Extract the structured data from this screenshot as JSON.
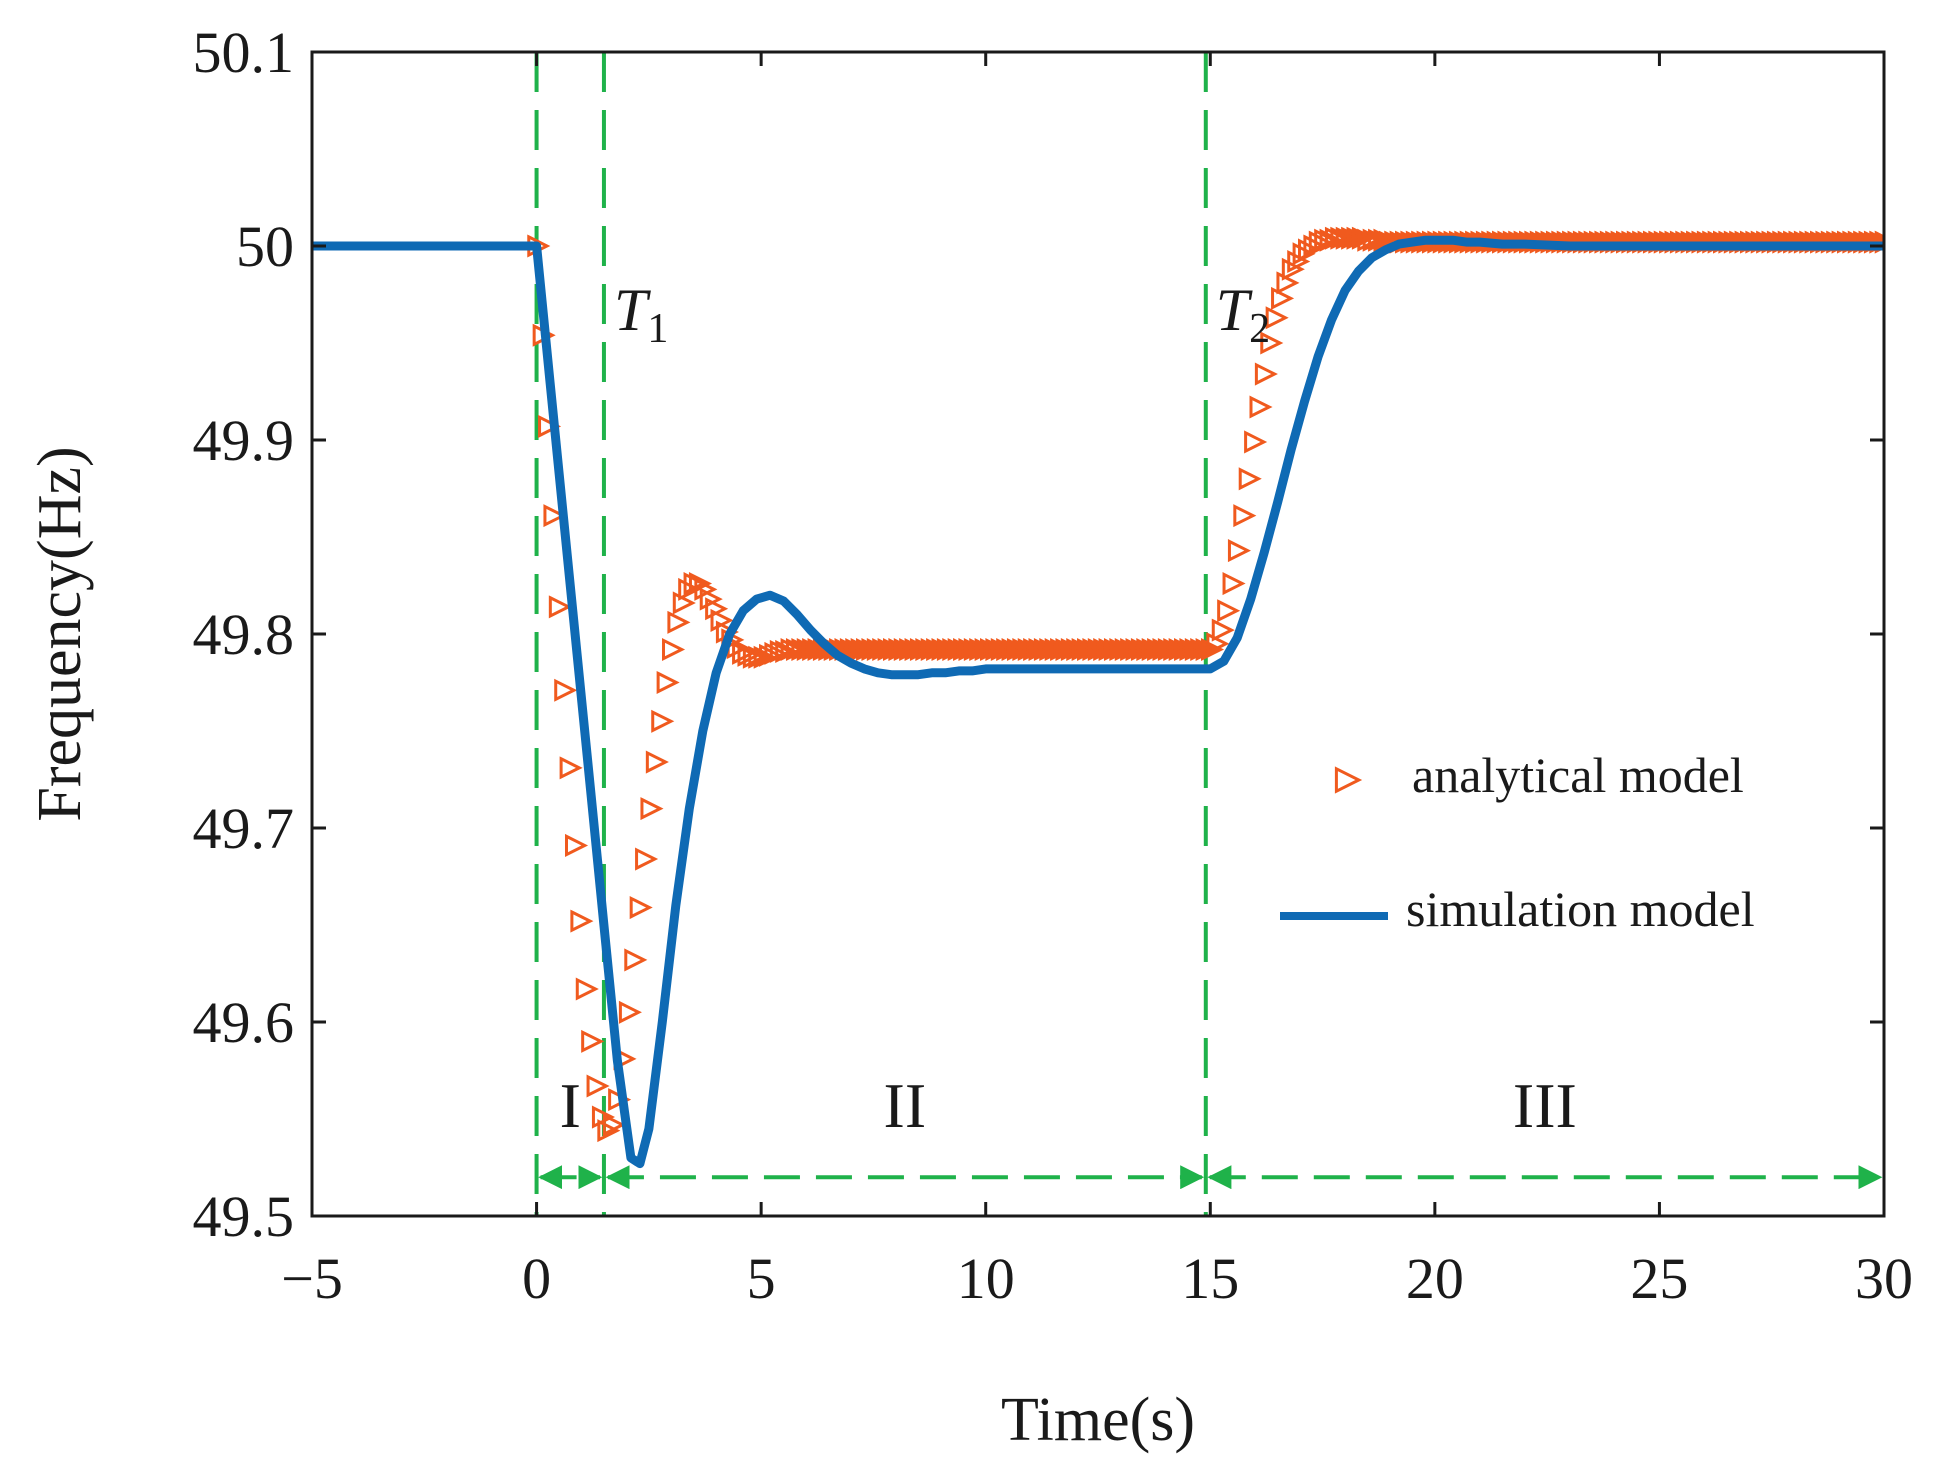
{
  "chart_data": {
    "type": "line",
    "xlabel": "Time(s)",
    "ylabel": "Frequency(Hz)",
    "xlim": [
      -5,
      30
    ],
    "ylim": [
      49.5,
      50.1
    ],
    "xticks": [
      -5,
      0,
      5,
      10,
      15,
      20,
      25,
      30
    ],
    "xtick_labels": [
      "−5",
      "0",
      "5",
      "10",
      "15",
      "20",
      "25",
      "30"
    ],
    "yticks": [
      49.5,
      49.6,
      49.7,
      49.8,
      49.9,
      50,
      50.1
    ],
    "ytick_labels": [
      "49.5",
      "49.6",
      "49.7",
      "49.8",
      "49.9",
      "50",
      "50.1"
    ],
    "grid": false,
    "legend_position": "right-middle",
    "series": [
      {
        "name": "analytical model",
        "style": "triangle-right markers",
        "color": "#f05a1e",
        "x": [
          0,
          0.12,
          0.24,
          0.36,
          0.48,
          0.6,
          0.72,
          0.84,
          0.96,
          1.08,
          1.2,
          1.32,
          1.44,
          1.56,
          1.68,
          1.8,
          1.92,
          2.04,
          2.16,
          2.28,
          2.4,
          2.52,
          2.64,
          2.76,
          2.88,
          3.0,
          3.12,
          3.24,
          3.36,
          3.48,
          3.6,
          3.72,
          3.84,
          3.96,
          4.08,
          4.2,
          4.32,
          4.44,
          4.56,
          4.68,
          4.8,
          4.92,
          5.04,
          5.16,
          5.28,
          5.4,
          5.52,
          5.64,
          5.76,
          5.88,
          6.0,
          6.12,
          6.24,
          6.36,
          6.48,
          6.6,
          6.72,
          6.84,
          6.96,
          7.08,
          7.2,
          7.32,
          7.44,
          7.56,
          7.68,
          7.8,
          7.92,
          8.04,
          8.16,
          8.28,
          8.4,
          8.52,
          8.64,
          8.76,
          8.88,
          9.0,
          9.12,
          9.24,
          9.36,
          9.48,
          9.6,
          9.72,
          9.84,
          9.96,
          10.08,
          10.2,
          10.32,
          10.44,
          10.56,
          10.68,
          10.8,
          10.92,
          11.04,
          11.16,
          11.28,
          11.4,
          11.52,
          11.64,
          11.76,
          11.88,
          12.0,
          12.12,
          12.24,
          12.36,
          12.48,
          12.6,
          12.72,
          12.84,
          12.96,
          13.08,
          13.2,
          13.32,
          13.44,
          13.56,
          13.68,
          13.8,
          13.92,
          14.04,
          14.16,
          14.28,
          14.4,
          14.52,
          14.64,
          14.76,
          14.88,
          15.0,
          15.12,
          15.24,
          15.36,
          15.48,
          15.6,
          15.72,
          15.84,
          15.96,
          16.08,
          16.2,
          16.32,
          16.44,
          16.56,
          16.68,
          16.8,
          16.92,
          17.04,
          17.16,
          17.28,
          17.4,
          17.52,
          17.64,
          17.76,
          17.88,
          18.0,
          18.12,
          18.24,
          18.36,
          18.48,
          18.6,
          18.72,
          18.84,
          18.96,
          19.08,
          19.2,
          19.32,
          19.44,
          19.56,
          19.68,
          19.8,
          19.92,
          20.04,
          20.16,
          20.28,
          20.4,
          20.52,
          20.64,
          20.76,
          20.88,
          21.0,
          21.12,
          21.24,
          21.36,
          21.48,
          21.6,
          21.72,
          21.84,
          21.96,
          22.08,
          22.2,
          22.32,
          22.44,
          22.56,
          22.68,
          22.8,
          22.92,
          23.04,
          23.16,
          23.28,
          23.4,
          23.52,
          23.64,
          23.76,
          23.88,
          24.0,
          24.12,
          24.24,
          24.36,
          24.48,
          24.6,
          24.72,
          24.84,
          24.96,
          25.08,
          25.2,
          25.32,
          25.44,
          25.56,
          25.68,
          25.8,
          25.92,
          26.04,
          26.16,
          26.28,
          26.4,
          26.52,
          26.64,
          26.76,
          26.88,
          27.0,
          27.12,
          27.24,
          27.36,
          27.48,
          27.6,
          27.72,
          27.84,
          27.96,
          28.08,
          28.2,
          28.32,
          28.44,
          28.56,
          28.68,
          28.8,
          28.92,
          29.04,
          29.16,
          29.28,
          29.4,
          29.52,
          29.64,
          29.76,
          29.88,
          30.0
        ],
        "y": [
          50.0,
          49.954,
          49.907,
          49.861,
          49.814,
          49.771,
          49.731,
          49.691,
          49.652,
          49.617,
          49.59,
          49.567,
          49.551,
          49.544,
          49.547,
          49.56,
          49.581,
          49.605,
          49.632,
          49.659,
          49.684,
          49.71,
          49.734,
          49.755,
          49.775,
          49.792,
          49.806,
          49.816,
          49.823,
          49.826,
          49.826,
          49.823,
          49.818,
          49.813,
          49.807,
          49.801,
          49.797,
          49.793,
          49.79,
          49.789,
          49.788,
          49.788,
          49.788,
          49.789,
          49.79,
          49.791,
          49.791,
          49.792,
          49.792,
          49.792,
          49.792,
          49.792,
          49.792,
          49.792,
          49.792,
          49.792,
          49.792,
          49.792,
          49.792,
          49.792,
          49.792,
          49.792,
          49.792,
          49.792,
          49.792,
          49.792,
          49.792,
          49.792,
          49.792,
          49.792,
          49.792,
          49.792,
          49.792,
          49.792,
          49.792,
          49.792,
          49.792,
          49.792,
          49.792,
          49.792,
          49.792,
          49.792,
          49.792,
          49.792,
          49.792,
          49.792,
          49.792,
          49.792,
          49.792,
          49.792,
          49.792,
          49.792,
          49.792,
          49.792,
          49.792,
          49.792,
          49.792,
          49.792,
          49.792,
          49.792,
          49.792,
          49.792,
          49.792,
          49.792,
          49.792,
          49.792,
          49.792,
          49.792,
          49.792,
          49.792,
          49.792,
          49.792,
          49.792,
          49.792,
          49.792,
          49.792,
          49.792,
          49.792,
          49.792,
          49.792,
          49.792,
          49.792,
          49.792,
          49.792,
          49.792,
          49.792,
          49.795,
          49.802,
          49.812,
          49.826,
          49.843,
          49.861,
          49.88,
          49.899,
          49.917,
          49.934,
          49.95,
          49.963,
          49.973,
          49.981,
          49.988,
          49.992,
          49.996,
          49.998,
          50.0,
          50.002,
          50.003,
          50.003,
          50.004,
          50.004,
          50.004,
          50.004,
          50.004,
          50.004,
          50.003,
          50.003,
          50.003,
          50.003,
          50.002,
          50.002,
          50.002,
          50.002,
          50.002,
          50.002,
          50.002,
          50.002,
          50.002,
          50.002,
          50.002,
          50.002,
          50.002,
          50.002,
          50.002,
          50.002,
          50.002,
          50.002,
          50.002,
          50.002,
          50.002,
          50.002,
          50.002,
          50.002,
          50.002,
          50.002,
          50.002,
          50.002,
          50.002,
          50.002,
          50.002,
          50.002,
          50.002,
          50.002,
          50.002,
          50.002,
          50.002,
          50.002,
          50.002,
          50.002,
          50.002,
          50.002,
          50.002,
          50.002,
          50.002,
          50.002,
          50.002,
          50.002,
          50.002,
          50.002,
          50.002,
          50.002,
          50.002,
          50.002,
          50.002,
          50.002,
          50.002,
          50.002,
          50.002,
          50.002,
          50.002,
          50.002,
          50.002,
          50.002,
          50.002,
          50.002,
          50.002,
          50.002,
          50.002,
          50.002,
          50.002,
          50.002,
          50.002,
          50.002,
          50.002,
          50.002,
          50.002,
          50.002,
          50.002,
          50.002,
          50.002,
          50.002,
          50.002,
          50.002,
          50.002,
          50.002,
          50.002,
          50.002,
          50.002,
          50.002,
          50.002,
          50.002,
          50.002
        ]
      },
      {
        "name": "simulation model",
        "style": "solid line",
        "color": "#0f6ab4",
        "x": [
          -5,
          -0.3,
          0,
          0.3,
          0.6,
          0.9,
          1.2,
          1.5,
          1.8,
          2.1,
          2.3,
          2.5,
          2.8,
          3.1,
          3.4,
          3.7,
          4.0,
          4.3,
          4.6,
          4.9,
          5.2,
          5.5,
          5.8,
          6.1,
          6.4,
          6.7,
          7.0,
          7.3,
          7.6,
          7.9,
          8.2,
          8.5,
          8.8,
          9.1,
          9.4,
          9.7,
          10.0,
          10.5,
          11.0,
          11.5,
          12.0,
          12.5,
          13.0,
          13.5,
          14.0,
          14.5,
          15.0,
          15.3,
          15.6,
          15.9,
          16.2,
          16.5,
          16.8,
          17.1,
          17.4,
          17.7,
          18.0,
          18.3,
          18.6,
          18.9,
          19.2,
          19.5,
          19.8,
          20.1,
          20.4,
          20.7,
          21.0,
          21.5,
          22.0,
          23.0,
          24.0,
          25.0,
          27.0,
          30.0
        ],
        "y": [
          50.0,
          50.0,
          50.0,
          49.93,
          49.86,
          49.79,
          49.72,
          49.65,
          49.58,
          49.53,
          49.527,
          49.545,
          49.6,
          49.66,
          49.71,
          49.75,
          49.78,
          49.8,
          49.812,
          49.818,
          49.82,
          49.817,
          49.81,
          49.802,
          49.795,
          49.789,
          49.785,
          49.782,
          49.78,
          49.779,
          49.779,
          49.779,
          49.78,
          49.78,
          49.781,
          49.781,
          49.782,
          49.782,
          49.782,
          49.782,
          49.782,
          49.782,
          49.782,
          49.782,
          49.782,
          49.782,
          49.782,
          49.786,
          49.798,
          49.818,
          49.842,
          49.868,
          49.895,
          49.92,
          49.943,
          49.962,
          49.977,
          49.987,
          49.994,
          49.998,
          50.001,
          50.002,
          50.003,
          50.003,
          50.003,
          50.002,
          50.002,
          50.001,
          50.001,
          50.0,
          50.0,
          50.0,
          50.0,
          50.0
        ]
      }
    ],
    "vertical_markers": [
      {
        "x": 0,
        "label": ""
      },
      {
        "x": 1.5,
        "label_main": "T",
        "label_sub": "1"
      },
      {
        "x": 14.9,
        "label_main": "T",
        "label_sub": "2"
      }
    ],
    "regions": [
      {
        "label": "I",
        "x_start": 0,
        "x_end": 1.5
      },
      {
        "label": "II",
        "x_start": 1.5,
        "x_end": 14.9
      },
      {
        "label": "III",
        "x_start": 14.9,
        "x_end": 30
      }
    ],
    "region_arrow_y": 49.52,
    "colors": {
      "analytical": "#f05a1e",
      "simulation": "#0f6ab4",
      "marker_lines": "#1fb24a",
      "axis": "#1a1a1a"
    }
  }
}
